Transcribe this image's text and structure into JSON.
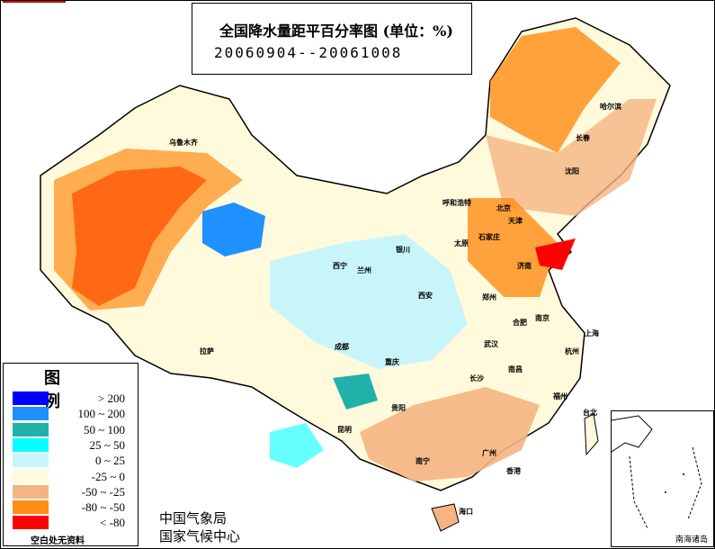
{
  "title": "全国降水量距平百分率图 (单位：%)",
  "date_range": "20060904--20061008",
  "legend": {
    "title": "图 例",
    "items": [
      {
        "label": "> 200",
        "color": "#0000ff"
      },
      {
        "label": "100 ~ 200",
        "color": "#1e90ff"
      },
      {
        "label": "50 ~ 100",
        "color": "#20b2aa"
      },
      {
        "label": "25 ~ 50",
        "color": "#00ffff"
      },
      {
        "label": "0 ~ 25",
        "color": "#c8f5fa"
      },
      {
        "label": "-25 ~ 0",
        "color": "#fffadc"
      },
      {
        "label": "-50 ~ -25",
        "color": "#f5b482"
      },
      {
        "label": "-80 ~ -50",
        "color": "#ff8c14"
      },
      {
        "label": "< -80",
        "color": "#ff0000"
      }
    ],
    "no_data": "空白处无资料"
  },
  "org": {
    "line1": "中国气象局",
    "line2": "国家气候中心"
  },
  "inset_label": "南海诸岛",
  "cities": [
    {
      "name": "乌鲁木齐"
    },
    {
      "name": "哈尔滨"
    },
    {
      "name": "长春"
    },
    {
      "name": "沈阳"
    },
    {
      "name": "呼和浩特"
    },
    {
      "name": "北京"
    },
    {
      "name": "天津"
    },
    {
      "name": "太原"
    },
    {
      "name": "石家庄"
    },
    {
      "name": "济南"
    },
    {
      "name": "银川"
    },
    {
      "name": "西宁"
    },
    {
      "name": "兰州"
    },
    {
      "name": "西安"
    },
    {
      "name": "郑州"
    },
    {
      "name": "合肥"
    },
    {
      "name": "南京"
    },
    {
      "name": "上海"
    },
    {
      "name": "杭州"
    },
    {
      "name": "武汉"
    },
    {
      "name": "长沙"
    },
    {
      "name": "南昌"
    },
    {
      "name": "福州"
    },
    {
      "name": "台北"
    },
    {
      "name": "拉萨"
    },
    {
      "name": "成都"
    },
    {
      "name": "重庆"
    },
    {
      "name": "贵阳"
    },
    {
      "name": "昆明"
    },
    {
      "name": "南宁"
    },
    {
      "name": "广州"
    },
    {
      "name": "香港"
    },
    {
      "name": "海口"
    }
  ]
}
